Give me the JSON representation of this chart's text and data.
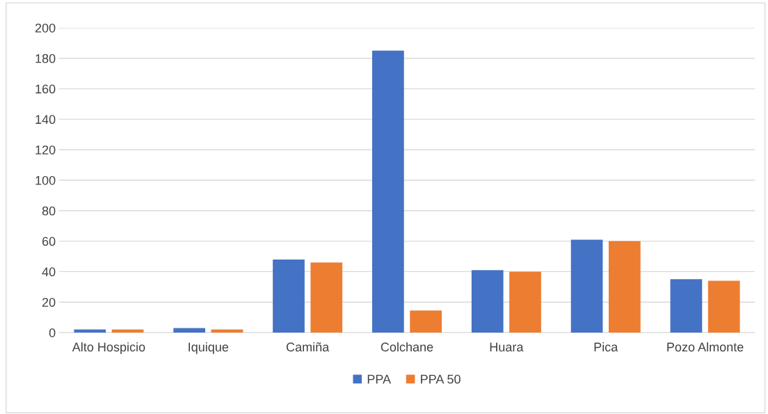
{
  "chart_data": {
    "type": "bar",
    "categories": [
      "Alto Hospicio",
      "Iquique",
      "Camiña",
      "Colchane",
      "Huara",
      "Pica",
      "Pozo Almonte"
    ],
    "series": [
      {
        "name": "PPA",
        "color": "#4472c4",
        "values": [
          2,
          3,
          48,
          185,
          41,
          61,
          35
        ]
      },
      {
        "name": "PPA 50",
        "color": "#ed7d31",
        "values": [
          2,
          2,
          46,
          14.5,
          40,
          60,
          34
        ]
      }
    ],
    "ylim": [
      0,
      200
    ],
    "yticks": [
      0,
      20,
      40,
      60,
      80,
      100,
      120,
      140,
      160,
      180,
      200
    ],
    "grid": "y",
    "legend": "bottom"
  }
}
